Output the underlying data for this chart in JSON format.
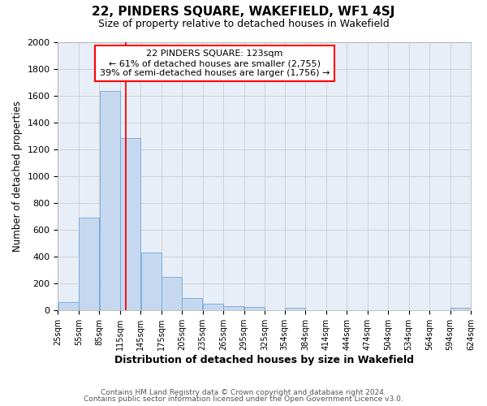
{
  "title": "22, PINDERS SQUARE, WAKEFIELD, WF1 4SJ",
  "subtitle": "Size of property relative to detached houses in Wakefield",
  "xlabel": "Distribution of detached houses by size in Wakefield",
  "ylabel": "Number of detached properties",
  "footer_line1": "Contains HM Land Registry data © Crown copyright and database right 2024.",
  "footer_line2": "Contains public sector information licensed under the Open Government Licence v3.0.",
  "annotation_title": "22 PINDERS SQUARE: 123sqm",
  "annotation_line1": "← 61% of detached houses are smaller (2,755)",
  "annotation_line2": "39% of semi-detached houses are larger (1,756) →",
  "bar_left_edges": [
    25,
    55,
    85,
    115,
    145,
    175,
    205,
    235,
    265,
    295,
    325,
    354,
    384,
    414,
    444,
    474,
    504,
    534,
    564,
    594
  ],
  "bar_widths": [
    30,
    30,
    30,
    30,
    30,
    30,
    30,
    30,
    30,
    30,
    29,
    30,
    30,
    30,
    30,
    30,
    30,
    30,
    30,
    30
  ],
  "bar_heights": [
    65,
    690,
    1635,
    1285,
    430,
    250,
    90,
    50,
    30,
    25,
    0,
    20,
    0,
    0,
    0,
    0,
    0,
    0,
    0,
    20
  ],
  "bar_color": "#c5d8f0",
  "bar_edge_color": "#6ea8d8",
  "grid_color": "#cccccc",
  "plot_bg_color": "#e8eef8",
  "fig_bg_color": "#ffffff",
  "vline_x": 123,
  "vline_color": "red",
  "tick_labels": [
    "25sqm",
    "55sqm",
    "85sqm",
    "115sqm",
    "145sqm",
    "175sqm",
    "205sqm",
    "235sqm",
    "265sqm",
    "295sqm",
    "325sqm",
    "354sqm",
    "384sqm",
    "414sqm",
    "444sqm",
    "474sqm",
    "504sqm",
    "534sqm",
    "564sqm",
    "594sqm",
    "624sqm"
  ],
  "ylim": [
    0,
    2000
  ],
  "yticks": [
    0,
    200,
    400,
    600,
    800,
    1000,
    1200,
    1400,
    1600,
    1800,
    2000
  ],
  "annotation_box_color": "white",
  "annotation_box_edge_color": "red",
  "xlim_left": 25,
  "xlim_right": 624
}
